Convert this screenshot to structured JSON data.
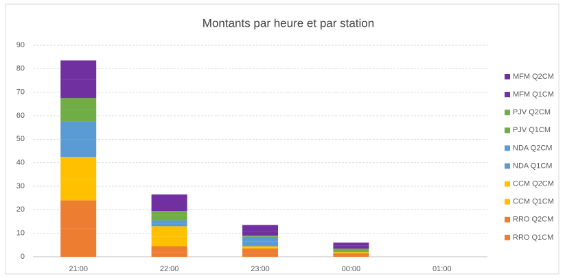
{
  "chart_data": {
    "type": "stacked_bar",
    "title": "Montants par heure et par station",
    "categories": [
      "21:00",
      "22:00",
      "23:00",
      "00:00",
      "01:00"
    ],
    "series": [
      {
        "name": "RRO Q1CM",
        "color": "#ed7d31",
        "values": [
          12,
          2,
          1.5,
          0.75,
          0
        ]
      },
      {
        "name": "RRO Q2CM",
        "color": "#ed7d31",
        "values": [
          12,
          2.5,
          2,
          0.75,
          0
        ]
      },
      {
        "name": "CCM Q1CM",
        "color": "#ffc000",
        "values": [
          9,
          4,
          0.5,
          0.5,
          0
        ]
      },
      {
        "name": "CCM Q2CM",
        "color": "#ffc000",
        "values": [
          9.5,
          4.5,
          0.5,
          0,
          0
        ]
      },
      {
        "name": "NDA Q1CM",
        "color": "#5b9bd5",
        "values": [
          7.5,
          1,
          2,
          0,
          0
        ]
      },
      {
        "name": "NDA Q2CM",
        "color": "#5b9bd5",
        "values": [
          7.5,
          1.5,
          2,
          0,
          0
        ]
      },
      {
        "name": "PJV Q1CM",
        "color": "#70ad47",
        "values": [
          5,
          2,
          0.5,
          0.75,
          0
        ]
      },
      {
        "name": "PJV Q2CM",
        "color": "#70ad47",
        "values": [
          5,
          2,
          0,
          0.75,
          0
        ]
      },
      {
        "name": "MFM Q1CM",
        "color": "#7030a0",
        "values": [
          8,
          3.5,
          2,
          1.25,
          0
        ]
      },
      {
        "name": "MFM Q2CM",
        "color": "#7030a0",
        "values": [
          8,
          3.5,
          2.5,
          1.25,
          0
        ]
      }
    ],
    "ylim": [
      0,
      90
    ],
    "yticks": [
      0,
      10,
      20,
      30,
      40,
      50,
      60,
      70,
      80,
      90
    ],
    "grid": true,
    "legend": "right"
  }
}
